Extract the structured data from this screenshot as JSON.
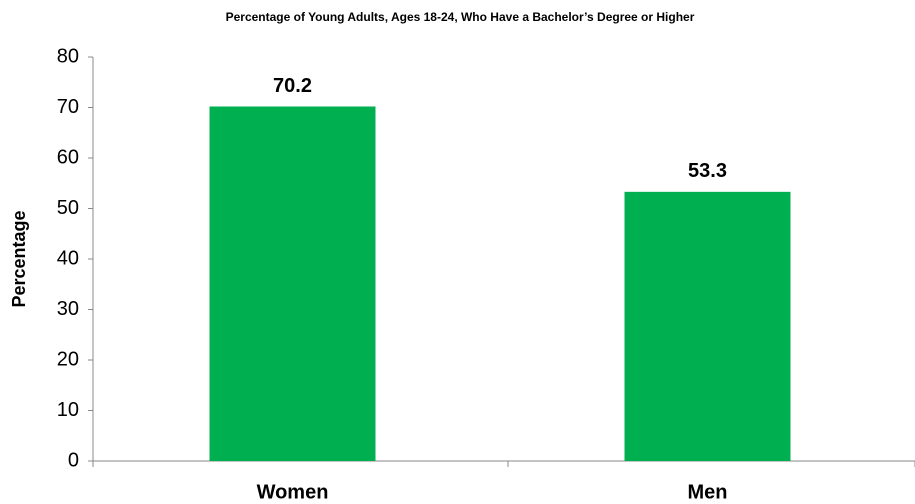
{
  "chart_data": {
    "type": "bar",
    "title": "Percentage of Young Adults, Ages 18-24, Who Have a Bachelor’s Degree or Higher",
    "y_label": "Percentage",
    "categories": [
      "Women",
      "Men"
    ],
    "values": [
      70.2,
      53.3
    ],
    "color": "#00b050",
    "ylim": [
      0,
      80
    ],
    "yticks": [
      0,
      10,
      20,
      30,
      40,
      50,
      60,
      70,
      80
    ],
    "grid": false
  }
}
